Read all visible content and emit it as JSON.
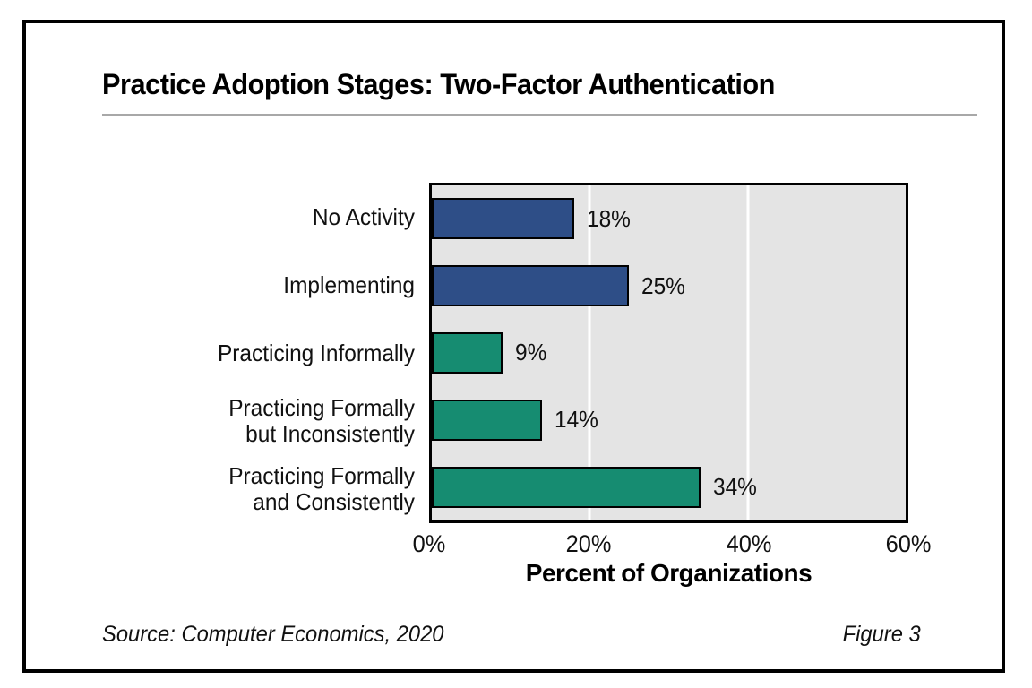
{
  "page": {
    "title": "Practice Adoption Stages: Two-Factor Authentication",
    "source": "Source: Computer Economics, 2020",
    "figure_label": "Figure 3"
  },
  "chart_data": {
    "type": "bar",
    "orientation": "horizontal",
    "title": "Practice Adoption Stages: Two-Factor Authentication",
    "categories": [
      "No Activity",
      "Implementing",
      "Practicing Informally",
      "Practicing Formally\nbut Inconsistently",
      "Practicing Formally\nand Consistently"
    ],
    "values": [
      18,
      25,
      9,
      14,
      34
    ],
    "value_labels": [
      "18%",
      "25%",
      "9%",
      "14%",
      "34%"
    ],
    "bar_colors": [
      "#2e4e87",
      "#2e4e87",
      "#168c71",
      "#168c71",
      "#168c71"
    ],
    "xlabel": "Percent of Organizations",
    "ylabel": "",
    "x_ticks": [
      "0%",
      "20%",
      "40%",
      "60%"
    ],
    "x_tick_values": [
      0,
      20,
      40,
      60
    ],
    "xlim": [
      0,
      60
    ],
    "grid": true,
    "gridline_color": "#ffffff",
    "plot_background": "#e4e4e4",
    "legend": "none"
  }
}
